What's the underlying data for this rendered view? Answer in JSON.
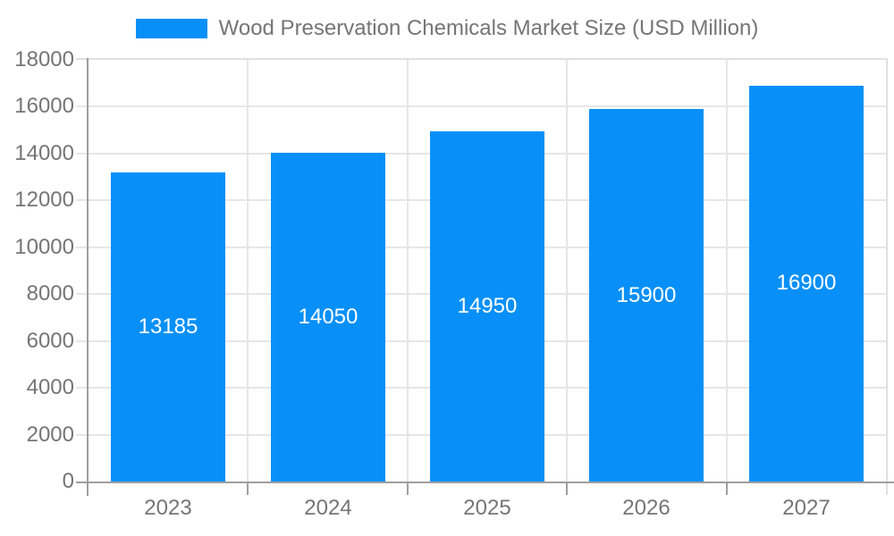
{
  "legend": {
    "label": "Wood Preservation Chemicals Market Size (USD Million)"
  },
  "chart_data": {
    "type": "bar",
    "title": "Wood Preservation Chemicals Market Size (USD Million)",
    "categories": [
      "2023",
      "2024",
      "2025",
      "2026",
      "2027"
    ],
    "values": [
      13185,
      14050,
      14950,
      15900,
      16900
    ],
    "value_labels": [
      "13185",
      "14050",
      "14950",
      "15900",
      "16900"
    ],
    "xlabel": "",
    "ylabel": "",
    "ylim": [
      0,
      18000
    ],
    "ytick_step": 2000,
    "yticks": [
      0,
      2000,
      4000,
      6000,
      8000,
      10000,
      12000,
      14000,
      16000,
      18000
    ],
    "grid": true,
    "legend_position": "top",
    "colors": {
      "bar": "#0890f8",
      "value_label": "#ffffff",
      "axis_text": "#757575",
      "axis_line": "#9e9e9e",
      "grid_line": "#e6e6e6",
      "plot_border": "#e0e0e0",
      "background": "#ffffff"
    }
  }
}
